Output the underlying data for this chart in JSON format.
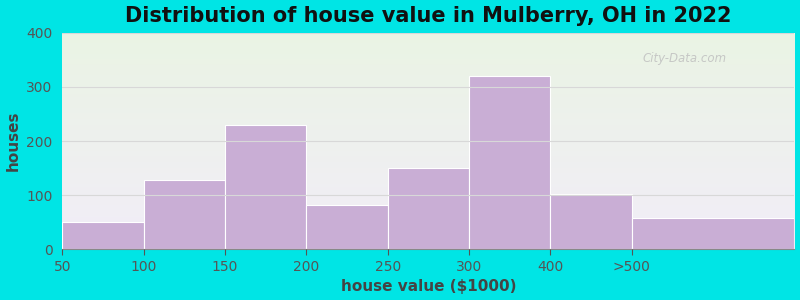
{
  "title": "Distribution of house value in Mulberry, OH in 2022",
  "xlabel": "house value ($1000)",
  "ylabel": "houses",
  "tick_labels": [
    "50",
    "100",
    "150",
    "200",
    "250",
    "300",
    "400",
    ">500"
  ],
  "bar_values": [
    50,
    128,
    230,
    82,
    150,
    320,
    102,
    58
  ],
  "bar_edges": [
    0,
    1,
    2,
    3,
    4,
    5,
    6,
    7,
    9
  ],
  "bar_color": "#c9aed5",
  "ylim": [
    0,
    400
  ],
  "yticks": [
    0,
    100,
    200,
    300,
    400
  ],
  "background_outer": "#00e5e5",
  "background_inner_top": "#eaf4e4",
  "background_inner_bottom": "#f2edf8",
  "grid_color": "#d8d8d8",
  "title_fontsize": 15,
  "axis_label_fontsize": 11,
  "tick_fontsize": 10,
  "watermark_text": "City-Data.com",
  "watermark_color": "#c0c0c0"
}
